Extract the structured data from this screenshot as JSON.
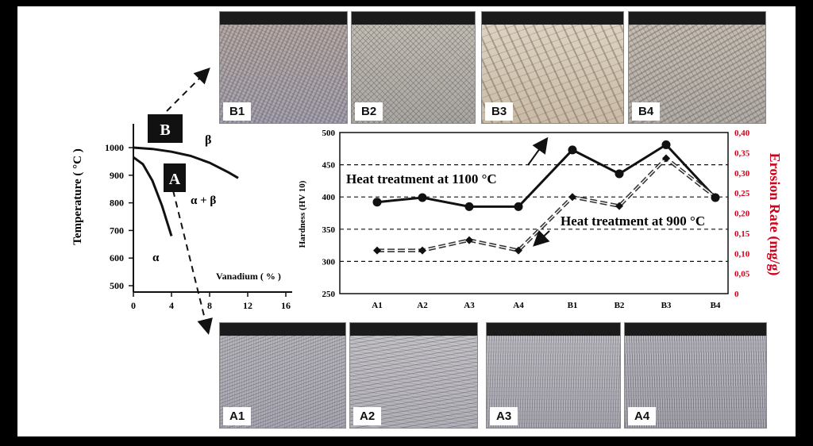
{
  "micrographs": {
    "top": [
      {
        "label": "B1"
      },
      {
        "label": "B2"
      },
      {
        "label": "B3"
      },
      {
        "label": "B4"
      }
    ],
    "bottom": [
      {
        "label": "A1"
      },
      {
        "label": "A2"
      },
      {
        "label": "A3"
      },
      {
        "label": "A4"
      }
    ]
  },
  "phase_diagram": {
    "type": "line",
    "ylabel": "Temperature ( °C )",
    "xlabel": "Vanadium  ( % )",
    "x_ticks": [
      0,
      4,
      8,
      12,
      16
    ],
    "y_ticks": [
      500,
      600,
      700,
      800,
      900,
      1000
    ],
    "xlim": [
      0,
      16
    ],
    "ylim": [
      500,
      1000
    ],
    "box_labels": [
      "B",
      "A"
    ],
    "region_labels": [
      "β",
      "α + β",
      "α"
    ],
    "curves": [
      {
        "name": "",
        "points": [
          [
            0,
            1000
          ],
          [
            2,
            995
          ],
          [
            4,
            985
          ],
          [
            6,
            970
          ],
          [
            8,
            945
          ],
          [
            10,
            910
          ],
          [
            11,
            890
          ]
        ]
      },
      {
        "name": "",
        "points": [
          [
            0,
            965
          ],
          [
            1,
            940
          ],
          [
            2,
            880
          ],
          [
            3,
            790
          ],
          [
            4,
            680
          ]
        ]
      }
    ]
  },
  "chart_data": {
    "type": "line",
    "title": "",
    "xlabel": "",
    "ylabel": "Hardness (HV 10)",
    "y2label": "Erosion Rate (mg/g)",
    "categories": [
      "A1",
      "A2",
      "A3",
      "A4",
      "B1",
      "B2",
      "B3",
      "B4"
    ],
    "ylim": [
      250,
      500
    ],
    "y_ticks": [
      250,
      300,
      350,
      400,
      450,
      500
    ],
    "y2lim": [
      0,
      0.4
    ],
    "y2_ticks": [
      "0",
      "0,05",
      "0,10",
      "0,15",
      "0,20",
      "0,25",
      "0,30",
      "0,35",
      "0,40"
    ],
    "dashed_gridlines": [
      300,
      350,
      400,
      450
    ],
    "series": [
      {
        "name": "Heat treatment at 1100 °C",
        "style": "solid",
        "values": [
          392,
          399,
          385,
          385,
          473,
          436,
          481,
          399
        ]
      },
      {
        "name": "Heat treatment at 900 °C",
        "style": "double-dashed",
        "values": [
          317,
          317,
          333,
          317,
          400,
          386,
          460,
          400
        ]
      }
    ],
    "annotations": [
      "Heat treatment at 1100 °C",
      "Heat treatment at 900 °C"
    ],
    "colors": {
      "right_axis": "#d0021b",
      "lines": "#111111"
    }
  }
}
